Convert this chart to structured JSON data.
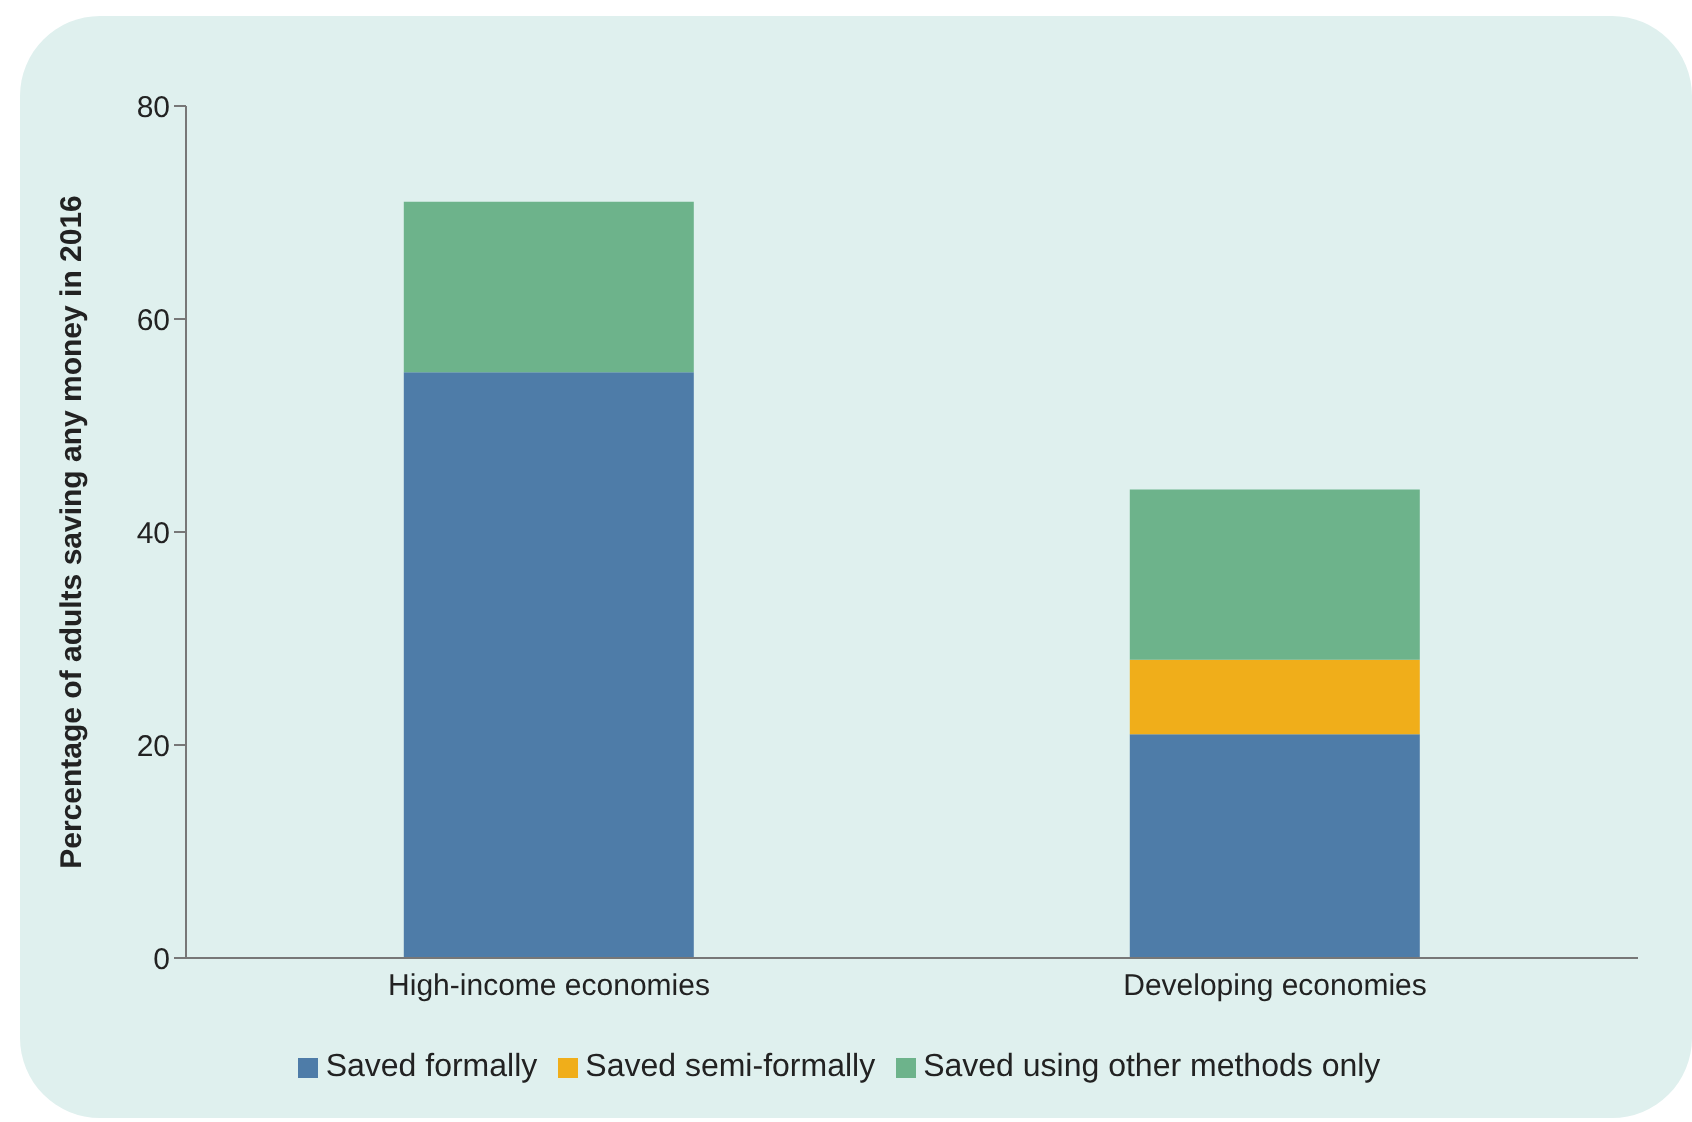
{
  "chart_data": {
    "type": "bar",
    "stacked": true,
    "ylabel": "Percentage of adults saving any money in 2016",
    "categories": [
      "High-income economies",
      "Developing economies"
    ],
    "series": [
      {
        "name": "Saved formally",
        "color": "#4e7ca8",
        "values": [
          55,
          21
        ]
      },
      {
        "name": "Saved semi-formally",
        "color": "#f0ae1a",
        "values": [
          0,
          7
        ]
      },
      {
        "name": "Saved using other methods only",
        "color": "#6db38b",
        "values": [
          16,
          16
        ]
      }
    ],
    "ylim": [
      0,
      80
    ],
    "yticks": [
      0,
      20,
      40,
      60,
      80
    ],
    "grid": false,
    "legend": "bottom"
  }
}
